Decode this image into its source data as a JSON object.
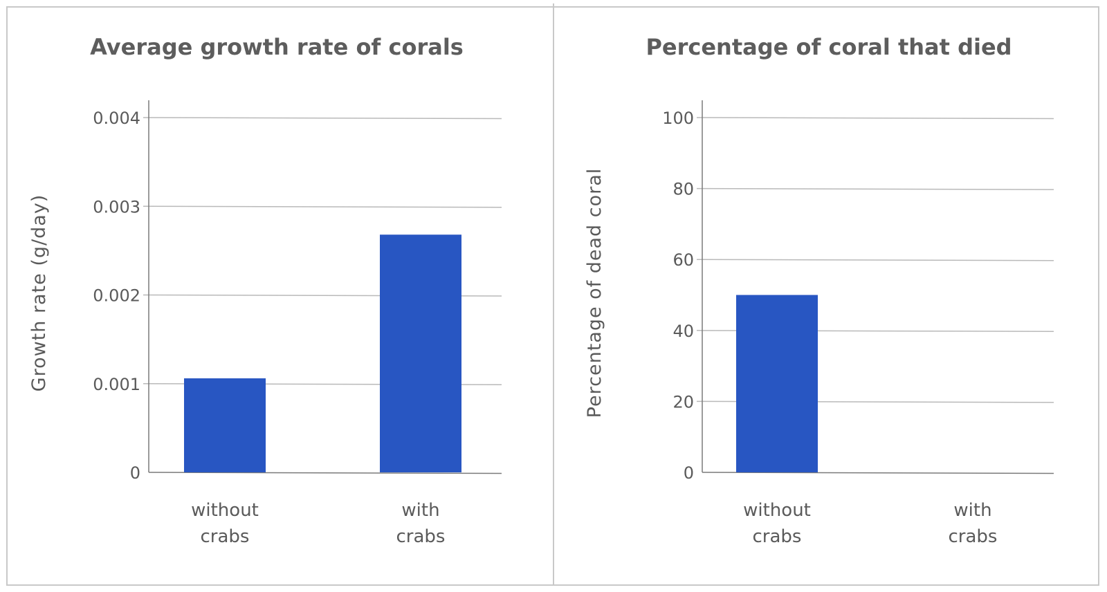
{
  "colors": {
    "bar": "#2856c2",
    "text": "#5a5a5a",
    "grid": "#b9b9b9",
    "frame": "#c8c8c8"
  },
  "chart_data": [
    {
      "type": "bar",
      "title": "Average growth rate of corals",
      "xlabel": "",
      "ylabel": "Growth rate (g/day)",
      "categories": [
        [
          "without",
          "crabs"
        ],
        [
          "with",
          "crabs"
        ]
      ],
      "values": [
        0.00106,
        0.00268
      ],
      "ylim": [
        0,
        0.004
      ],
      "yticks": [
        "0",
        "0.001",
        "0.002",
        "0.003",
        "0.004"
      ],
      "grid": true,
      "legend": "none"
    },
    {
      "type": "bar",
      "title": "Percentage of coral that died",
      "xlabel": "",
      "ylabel": "Percentage of dead coral",
      "categories": [
        [
          "without",
          "crabs"
        ],
        [
          "with",
          "crabs"
        ]
      ],
      "values": [
        50,
        0
      ],
      "ylim": [
        0,
        100
      ],
      "yticks": [
        "0",
        "20",
        "40",
        "60",
        "80",
        "100"
      ],
      "grid": true,
      "legend": "none"
    }
  ]
}
